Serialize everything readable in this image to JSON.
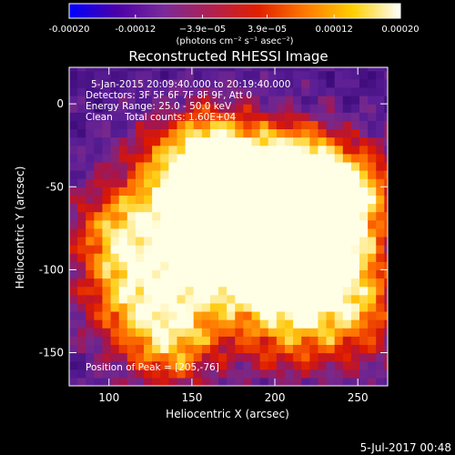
{
  "chart_data": {
    "type": "heatmap",
    "title": "Reconstructed RHESSI Image",
    "xlabel": "Heliocentric X (arcsec)",
    "ylabel": "Heliocentric Y (arcsec)",
    "xlim": [
      76,
      268
    ],
    "ylim": [
      -170,
      22
    ],
    "x_ticks": [
      100,
      150,
      200,
      250
    ],
    "x_tick_labels": [
      "100",
      "150",
      "200",
      "250"
    ],
    "y_ticks": [
      0,
      -50,
      -100,
      -150
    ],
    "y_tick_labels": [
      "0",
      "-50",
      "-100",
      "-150"
    ],
    "colorbar": {
      "range": [
        -0.0002,
        0.0002
      ],
      "tick_values": [
        -0.0002,
        -0.00012,
        -3.9e-05,
        3.9e-05,
        0.00012,
        0.0002
      ],
      "tick_labels": [
        "-0.00020",
        "-0.00012",
        "−3.9e−05",
        "3.9e−05",
        "0.00012",
        "0.00020"
      ],
      "units_label": "(photons cm⁻² s⁻¹ asec⁻²)",
      "colors": [
        "#0000ff",
        "#4b00a8",
        "#7a2a9a",
        "#b02050",
        "#e02000",
        "#ff7a00",
        "#ffd000",
        "#ffffff"
      ]
    },
    "info": {
      "time_range": "5-Jan-2015 20:09:40.000 to 20:19:40.000",
      "detectors": "Detectors: 3F 5F 6F 7F 8F 9F, Att 0",
      "energy": "Energy Range: 25.0 - 50.0 keV",
      "method_counts": "Clean    Total counts: 1.60E+04"
    },
    "peak_label": "Position of Peak = [205,-76]",
    "peak": [
      205,
      -76
    ]
  },
  "footer_date": "5-Jul-2017 00:48"
}
